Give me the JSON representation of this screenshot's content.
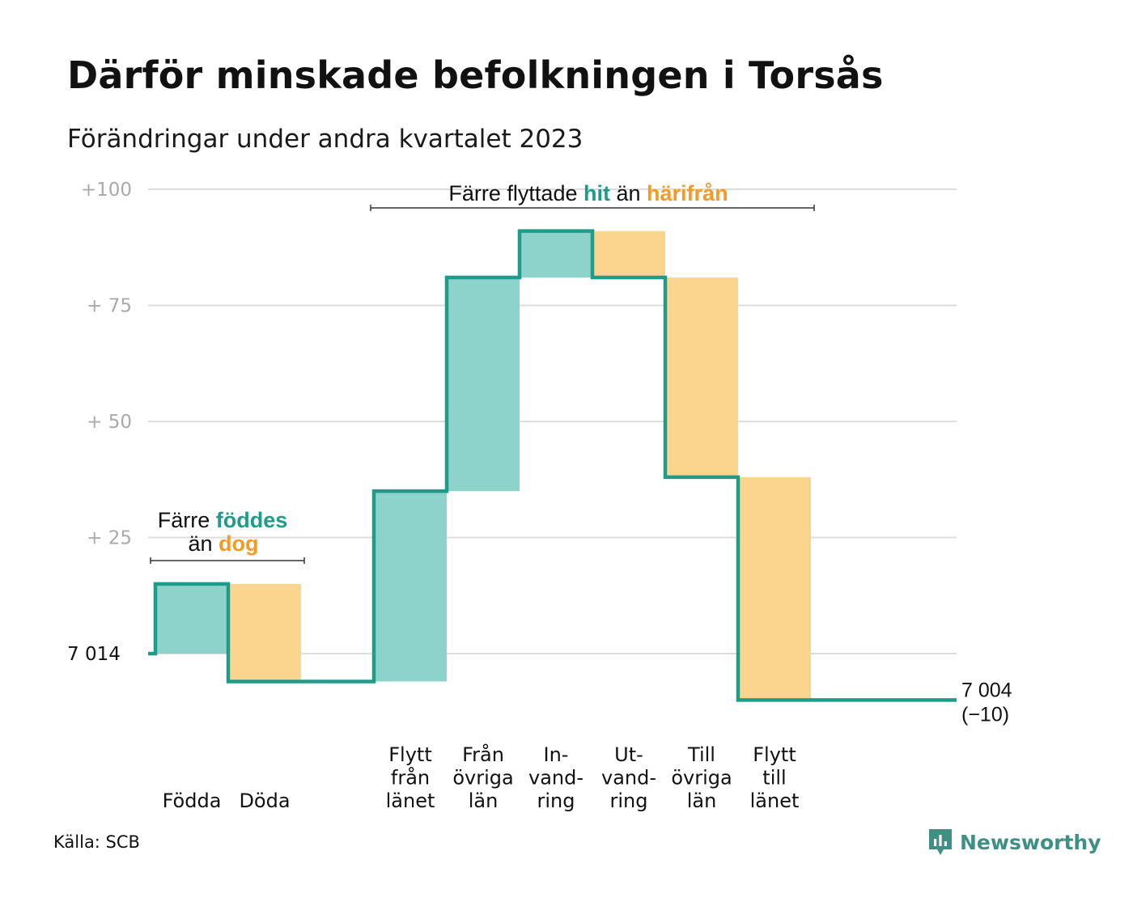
{
  "header": {
    "title": "Därför minskade befolkningen i Torsås",
    "subtitle": "Förändringar under andra kvartalet 2023"
  },
  "colors": {
    "in": "#1f9b8a",
    "in_fill": "#8dd3cb",
    "out": "#f29b26",
    "out_fill": "#fbd58e",
    "grid": "#dddddd",
    "tick": "#aaaaaa"
  },
  "chart_data": {
    "type": "waterfall",
    "base": 7014,
    "ylim": [
      -10,
      100
    ],
    "yticks": [
      {
        "value": 100,
        "label": "+100"
      },
      {
        "value": 75,
        "label": "+  75"
      },
      {
        "value": 50,
        "label": "+  50"
      },
      {
        "value": 25,
        "label": "+  25"
      },
      {
        "value": 0,
        "label": "7  014"
      }
    ],
    "steps": [
      {
        "label": [
          "",
          "",
          "Födda"
        ],
        "kind": "in",
        "start": 0,
        "end": 15
      },
      {
        "label": [
          "",
          "",
          "Döda"
        ],
        "kind": "out",
        "start": 15,
        "end": -6
      },
      {
        "label": [
          "",
          "",
          ""
        ],
        "kind": "none",
        "start": -6,
        "end": -6
      },
      {
        "label": [
          "Flytt",
          "från",
          "länet"
        ],
        "kind": "in",
        "start": -6,
        "end": 35
      },
      {
        "label": [
          "Från",
          "övriga",
          "län"
        ],
        "kind": "in",
        "start": 35,
        "end": 81
      },
      {
        "label": [
          "In-",
          "vand-",
          "ring"
        ],
        "kind": "in",
        "start": 81,
        "end": 91
      },
      {
        "label": [
          "Ut-",
          "vand-",
          "ring"
        ],
        "kind": "out",
        "start": 91,
        "end": 81
      },
      {
        "label": [
          "Till",
          "övriga",
          "län"
        ],
        "kind": "out",
        "start": 81,
        "end": 38
      },
      {
        "label": [
          "Flytt",
          "till",
          "länet"
        ],
        "kind": "out",
        "start": 38,
        "end": -10
      },
      {
        "label": [
          "",
          "",
          ""
        ],
        "kind": "none",
        "start": -10,
        "end": -10
      }
    ],
    "end_value_label": "7 004",
    "end_change_label": "(−10)",
    "annotations": {
      "births": {
        "line1_prefix": "Färre ",
        "line1_highlight": "föddes",
        "line2_prefix": "än ",
        "line2_highlight": "dog"
      },
      "migration": {
        "prefix": "Färre flyttade ",
        "highlight1": "hit",
        "middle": " än ",
        "highlight2": "härifrån"
      }
    }
  },
  "footer": {
    "source": "Källa: SCB",
    "brand": "Newsworthy"
  }
}
